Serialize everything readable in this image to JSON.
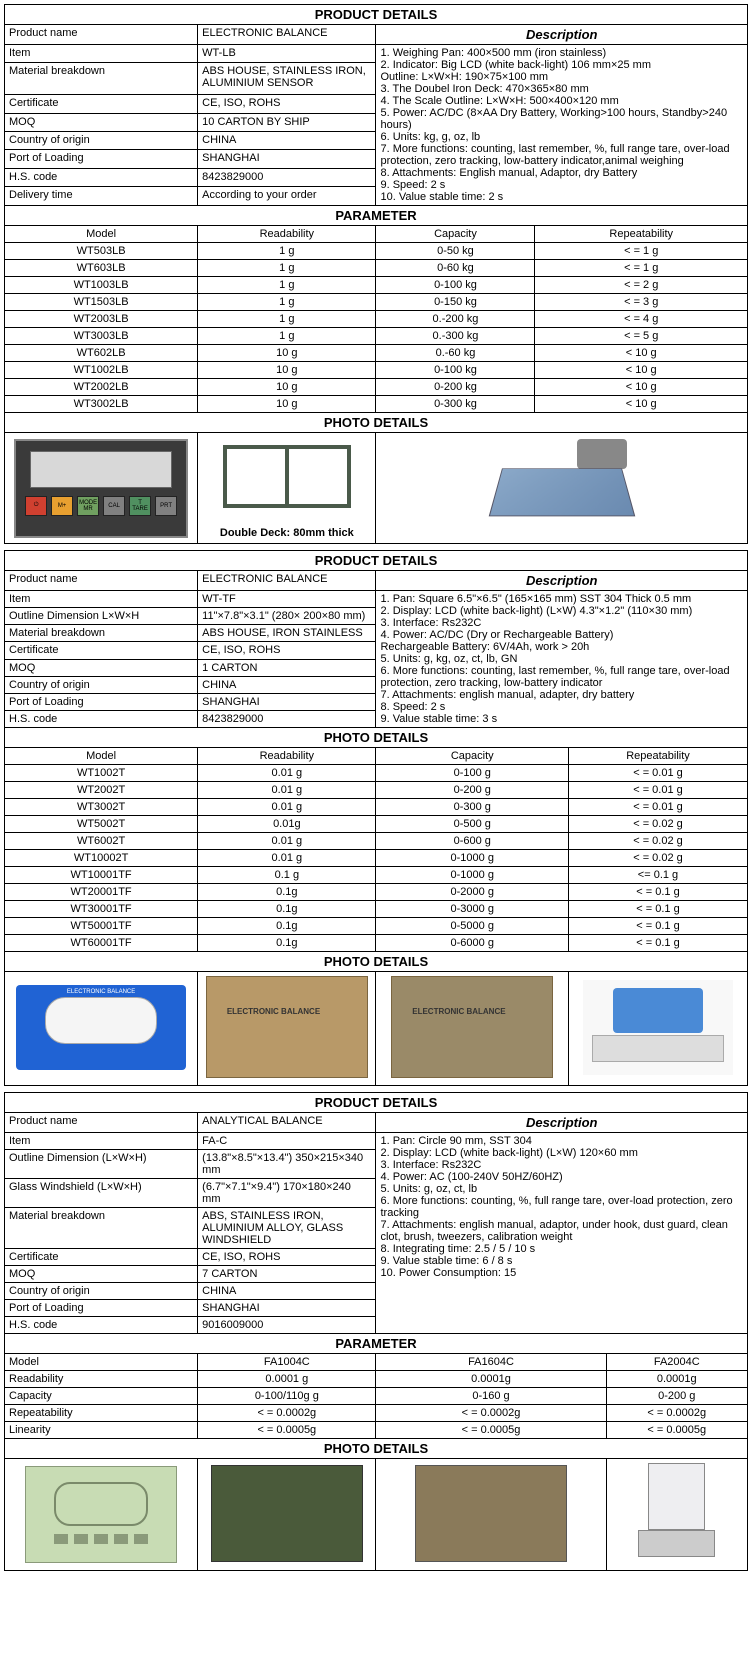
{
  "section1": {
    "title_product_details": "PRODUCT DETAILS",
    "title_parameter": "PARAMETER",
    "title_photo": "PHOTO DETAILS",
    "desc_header": "Description",
    "details": [
      {
        "label": "Product name",
        "value": "ELECTRONIC BALANCE"
      },
      {
        "label": "Item",
        "value": "WT-LB"
      },
      {
        "label": "Material breakdown",
        "value": "ABS HOUSE, STAINLESS IRON, ALUMINIUM SENSOR"
      },
      {
        "label": "Certificate",
        "value": "CE, ISO, ROHS"
      },
      {
        "label": "MOQ",
        "value": "10 CARTON BY SHIP"
      },
      {
        "label": "Country of origin",
        "value": "CHINA"
      },
      {
        "label": "Port of Loading",
        "value": "SHANGHAI"
      },
      {
        "label": "H.S. code",
        "value": "8423829000"
      },
      {
        "label": "Delivery time",
        "value": "According to your order"
      }
    ],
    "description": "1. Weighing Pan: 400×500 mm (iron stainless)\n2. Indicator: Big LCD (white back-light) 106 mm×25 mm\n    Outline: L×W×H: 190×75×100 mm\n3. The Doubel Iron Deck:  470×365×80 mm\n4. The Scale Outline: L×W×H: 500×400×120 mm\n5. Power: AC/DC (8×AA Dry Battery, Working>100 hours, Standby>240 hours)\n6. Units: kg, g, oz, lb\n7. More functions: counting, last remember, %, full range tare, over-load protection, zero tracking, low-battery indicator,animal weighing\n8. Attachments: English manual, Adaptor, dry Battery\n9. Speed: 2 s\n10. Value stable time: 2 s",
    "param_headers": [
      "Model",
      "Readability",
      "Capacity",
      "Repeatability"
    ],
    "params": [
      [
        "WT503LB",
        "1 g",
        "0-50 kg",
        "< = 1 g"
      ],
      [
        "WT603LB",
        "1 g",
        "0-60 kg",
        "< = 1 g"
      ],
      [
        "WT1003LB",
        "1 g",
        "0-100 kg",
        "< = 2 g"
      ],
      [
        "WT1503LB",
        "1 g",
        "0-150 kg",
        "< = 3 g"
      ],
      [
        "WT2003LB",
        "1 g",
        "0.-200 kg",
        "< = 4 g"
      ],
      [
        "WT3003LB",
        "1 g",
        "0.-300 kg",
        "< = 5 g"
      ],
      [
        "WT602LB",
        "10 g",
        "0.-60 kg",
        "< 10 g"
      ],
      [
        "WT1002LB",
        "10 g",
        "0-100 kg",
        "< 10 g"
      ],
      [
        "WT2002LB",
        "10 g",
        "0-200 kg",
        "< 10 g"
      ],
      [
        "WT3002LB",
        "10 g",
        "0-300 kg",
        "< 10 g"
      ]
    ],
    "photo_caption": "Double Deck: 80mm thick",
    "panel_buttons": [
      "⏻",
      "M+",
      "MODE MR",
      "CAL",
      "T TARE",
      "PRT"
    ],
    "panel_colors": [
      "#d04030",
      "#e8a030",
      "#70a060",
      "#808080",
      "#509060",
      "#808080"
    ]
  },
  "section2": {
    "title_product_details": "PRODUCT DETAILS",
    "title_photo": "PHOTO DETAILS",
    "desc_header": "Description",
    "details": [
      {
        "label": "Product name",
        "value": "ELECTRONIC BALANCE"
      },
      {
        "label": "Item",
        "value": "WT-TF"
      },
      {
        "label": "Outline Dimension L×W×H",
        "value": "11\"×7.8\"×3.1\" (280× 200×80 mm)"
      },
      {
        "label": "Material breakdown",
        "value": "ABS HOUSE, IRON STAINLESS"
      },
      {
        "label": "Certificate",
        "value": "CE, ISO, ROHS"
      },
      {
        "label": "MOQ",
        "value": "1 CARTON"
      },
      {
        "label": "Country of origin",
        "value": "CHINA"
      },
      {
        "label": "Port of Loading",
        "value": "SHANGHAI"
      },
      {
        "label": "H.S. code",
        "value": "8423829000"
      }
    ],
    "description": "1. Pan: Square 6.5\"×6.5\" (165×165 mm) SST 304 Thick 0.5 mm\n2. Display: LCD (white back-light) (L×W) 4.3\"×1.2\" (110×30 mm)\n3. Interface: Rs232C\n4. Power: AC/DC (Dry or Rechargeable Battery)\n    Rechargeable Battery: 6V/4Ah, work > 20h\n5. Units: g, kg, oz, ct, lb, GN\n6. More functions: counting, last remember, %, full range tare, over-load protection, zero tracking, low-battery indicator\n7. Attachments: english manual, adapter, dry battery\n8. Speed: 2 s\n9. Value stable time: 3 s",
    "param_headers": [
      "Model",
      "Readability",
      "Capacity",
      "Repeatability"
    ],
    "params": [
      [
        "WT1002T",
        "0.01 g",
        "0-100 g",
        "< = 0.01 g"
      ],
      [
        "WT2002T",
        "0.01 g",
        "0-200 g",
        "< = 0.01 g"
      ],
      [
        "WT3002T",
        "0.01 g",
        "0-300 g",
        "< = 0.01 g"
      ],
      [
        "WT5002T",
        "0.01g",
        "0-500 g",
        "< = 0.02 g"
      ],
      [
        "WT6002T",
        "0.01 g",
        "0-600 g",
        "< = 0.02 g"
      ],
      [
        "WT10002T",
        "0.01 g",
        "0-1000 g",
        "< = 0.02 g"
      ],
      [
        "WT10001TF",
        "0.1 g",
        "0-1000 g",
        "<= 0.1 g"
      ],
      [
        "WT20001TF",
        "0.1g",
        "0-2000 g",
        "< = 0.1 g"
      ],
      [
        "WT30001TF",
        "0.1g",
        "0-3000 g",
        "< = 0.1 g"
      ],
      [
        "WT50001TF",
        "0.1g",
        "0-5000 g",
        "< = 0.1 g"
      ],
      [
        "WT60001TF",
        "0.1g",
        "0-6000 g",
        "< = 0.1 g"
      ]
    ],
    "blue_label": "ELECTRONIC BALANCE"
  },
  "section3": {
    "title_product_details": "PRODUCT DETAILS",
    "title_parameter": "PARAMETER",
    "title_photo": "PHOTO DETAILS",
    "desc_header": "Description",
    "details": [
      {
        "label": "Product name",
        "value": "ANALYTICAL BALANCE"
      },
      {
        "label": "Item",
        "value": "FA-C"
      },
      {
        "label": "Outline Dimension (L×W×H)",
        "value": "(13.8\"×8.5\"×13.4\") 350×215×340 mm"
      },
      {
        "label": "Glass Windshield (L×W×H)",
        "value": "(6.7\"×7.1\"×9.4\") 170×180×240 mm"
      },
      {
        "label": "Material breakdown",
        "value": "ABS, STAINLESS IRON, ALUMINIUM ALLOY, GLASS WINDSHIELD"
      },
      {
        "label": "Certificate",
        "value": "CE, ISO, ROHS"
      },
      {
        "label": "MOQ",
        "value": "7 CARTON"
      },
      {
        "label": "Country of origin",
        "value": "CHINA"
      },
      {
        "label": "Port of Loading",
        "value": "SHANGHAI"
      },
      {
        "label": "H.S. code",
        "value": "9016009000"
      }
    ],
    "description": "1. Pan: Circle 90 mm, SST 304\n2. Display: LCD (white back-light) (L×W) 120×60 mm\n3. Interface: Rs232C\n4. Power: AC (100-240V 50HZ/60HZ)\n5. Units: g, oz, ct, lb\n6. More functions: counting, %, full range tare, over-load protection, zero tracking\n7. Attachments: english manual, adaptor, under hook, dust guard, clean clot, brush, tweezers, calibration weight\n8. Integrating time: 2.5 / 5 / 10 s\n9. Value stable time: 6 / 8 s\n10. Power Consumption: 15",
    "param_headers": [
      "Model",
      "FA1004C",
      "FA1604C",
      "FA2004C"
    ],
    "params": [
      [
        "Readability",
        "0.0001 g",
        "0.0001g",
        "0.0001g"
      ],
      [
        "Capacity",
        "0-100/110g g",
        "0-160 g",
        "0-200 g"
      ],
      [
        "Repeatability",
        "< = 0.0002g",
        "< = 0.0002g",
        "< = 0.0002g"
      ],
      [
        "Linearity",
        "< = 0.0005g",
        "< = 0.0005g",
        "< = 0.0005g"
      ]
    ]
  }
}
